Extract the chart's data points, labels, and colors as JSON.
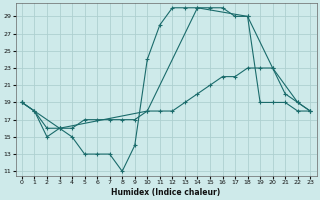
{
  "xlabel": "Humidex (Indice chaleur)",
  "background_color": "#ceeaea",
  "grid_color": "#aed0d0",
  "line_color": "#1a6b6b",
  "xlim": [
    -0.5,
    23.5
  ],
  "ylim": [
    10.5,
    30.5
  ],
  "yticks": [
    11,
    13,
    15,
    17,
    19,
    21,
    23,
    25,
    27,
    29
  ],
  "xticks": [
    0,
    1,
    2,
    3,
    4,
    5,
    6,
    7,
    8,
    9,
    10,
    11,
    12,
    13,
    14,
    15,
    16,
    17,
    18,
    19,
    20,
    21,
    22,
    23
  ],
  "series1_x": [
    0,
    1,
    2,
    3,
    4,
    5,
    6,
    7,
    8,
    9,
    10,
    11,
    12,
    13,
    14,
    15,
    16,
    17,
    18,
    19,
    20,
    21,
    22,
    23
  ],
  "series1_y": [
    19,
    18,
    15,
    16,
    15,
    13,
    13,
    13,
    11,
    14,
    24,
    28,
    30,
    30,
    30,
    30,
    30,
    29,
    29,
    19,
    19,
    19,
    18,
    18
  ],
  "series2_x": [
    0,
    1,
    2,
    3,
    4,
    5,
    6,
    7,
    8,
    9,
    10,
    11,
    12,
    13,
    14,
    15,
    16,
    17,
    18,
    19,
    20,
    21,
    22,
    23
  ],
  "series2_y": [
    19,
    18,
    16,
    16,
    16,
    17,
    17,
    17,
    17,
    17,
    18,
    18,
    18,
    19,
    20,
    21,
    22,
    22,
    23,
    23,
    23,
    20,
    19,
    18
  ],
  "series3_x": [
    0,
    3,
    10,
    14,
    18,
    20,
    22,
    23
  ],
  "series3_y": [
    19,
    16,
    18,
    30,
    29,
    23,
    19,
    18
  ]
}
